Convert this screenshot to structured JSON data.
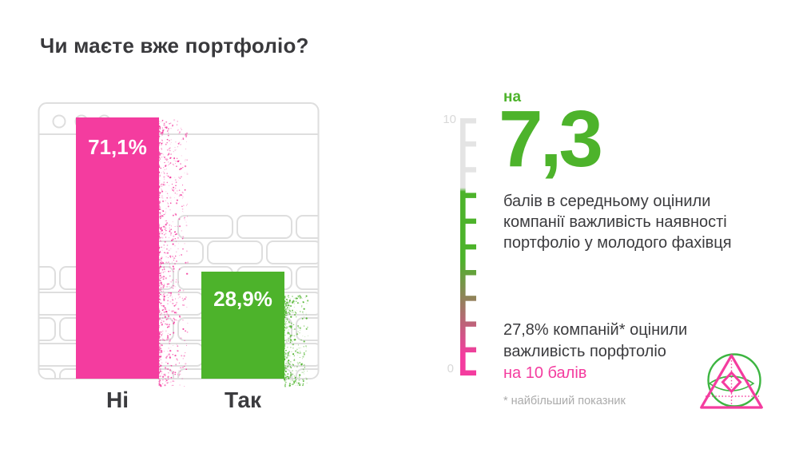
{
  "title": "Чи маєте вже портфоліо?",
  "chart_data": {
    "type": "bar",
    "title": "Чи маєте вже портфоліо?",
    "categories": [
      "Ні",
      "Так"
    ],
    "values": [
      71.1,
      28.9
    ],
    "value_labels": [
      "71,1%",
      "28,9%"
    ],
    "ylim": [
      0,
      100
    ],
    "bar_colors": [
      "#F43C9F",
      "#4DB32B"
    ],
    "legend": "none",
    "grid": "off"
  },
  "ruler": {
    "min": 0,
    "max": 10,
    "min_label": "0",
    "max_label": "10",
    "ticks": 11,
    "highlight_value": 7.3
  },
  "stat": {
    "prefix": "на",
    "value": "7,3",
    "desc_lines": [
      "балів в середньому оцінили",
      "компанії важливість наявності",
      "портфоліо у молодого фахівця"
    ]
  },
  "secondary": {
    "line1": "27,8% компаній* оцінили",
    "line2": "важливість порфтоліо",
    "highlight": "на 10 балів"
  },
  "footnote": "* найбільший показник",
  "colors": {
    "pink": "#F43C9F",
    "green": "#4DB32B",
    "logo_green": "#3DB541",
    "dark_text": "#3B3B3E",
    "frame_gray": "#DEDEDE",
    "scale_gray": "#E4E4E4",
    "label_gray": "#D8D8D8",
    "footnote_gray": "#ABABAB"
  },
  "logo": {
    "name": "eye-pyramid-logo"
  }
}
